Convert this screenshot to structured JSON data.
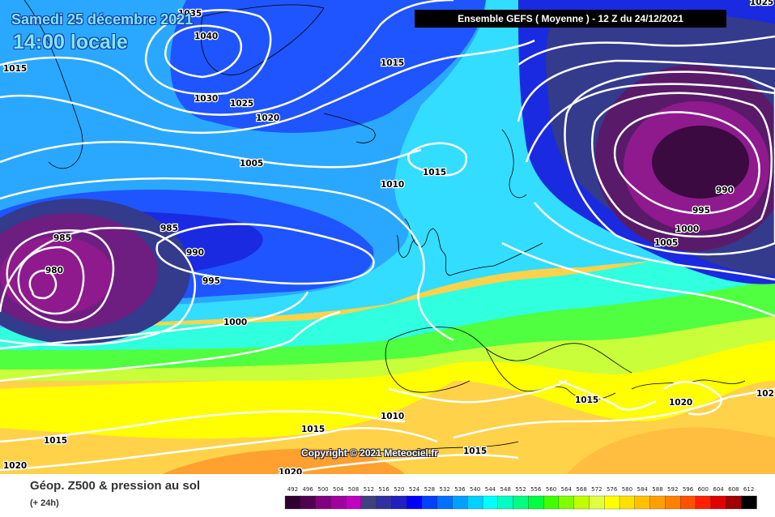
{
  "title": {
    "date": "Samedi 25 décembre 2021",
    "time": "14:00 locale"
  },
  "header": "Ensemble GEFS  ( Moyenne )  -  12 Z du 24/12/2021",
  "copyright": "Copyright © 2021 Meteociel.fr",
  "footer": {
    "title": "Géop. Z500 & pression au sol",
    "subtitle": "(+ 24h)"
  },
  "legend": {
    "values": [
      "492",
      "496",
      "500",
      "504",
      "508",
      "512",
      "516",
      "520",
      "524",
      "528",
      "532",
      "536",
      "540",
      "544",
      "548",
      "552",
      "556",
      "560",
      "564",
      "568",
      "572",
      "576",
      "580",
      "584",
      "588",
      "592",
      "596",
      "600",
      "604",
      "608",
      "612"
    ],
    "colors": [
      "#300030",
      "#500050",
      "#800080",
      "#a000a0",
      "#c000c0",
      "#404080",
      "#3030a0",
      "#2020c0",
      "#0000ff",
      "#0040ff",
      "#0070ff",
      "#00a0ff",
      "#00d0ff",
      "#00ffff",
      "#00ffc0",
      "#00ff80",
      "#00ff40",
      "#40ff00",
      "#80ff00",
      "#c0ff00",
      "#e0ff40",
      "#ffff00",
      "#ffe000",
      "#ffc000",
      "#ffa000",
      "#ff8000",
      "#ff5000",
      "#ff2000",
      "#e00000",
      "#a00000",
      "#000000"
    ]
  },
  "isobars": [
    {
      "label": "1035"
    },
    {
      "label": "1040"
    },
    {
      "label": "1015"
    },
    {
      "label": "1030"
    },
    {
      "label": "1025"
    },
    {
      "label": "1020"
    },
    {
      "label": "1015"
    },
    {
      "label": "1005"
    },
    {
      "label": "1010"
    },
    {
      "label": "1015"
    },
    {
      "label": "985"
    },
    {
      "label": "985"
    },
    {
      "label": "980"
    },
    {
      "label": "990"
    },
    {
      "label": "995"
    },
    {
      "label": "1000"
    },
    {
      "label": "990"
    },
    {
      "label": "995"
    },
    {
      "label": "1000"
    },
    {
      "label": "1005"
    },
    {
      "label": "1015"
    },
    {
      "label": "1020"
    },
    {
      "label": "1010"
    },
    {
      "label": "1015"
    },
    {
      "label": "1015"
    },
    {
      "label": "1015"
    },
    {
      "label": "1020"
    },
    {
      "label": "1020"
    },
    {
      "label": "102"
    },
    {
      "label": "1025"
    }
  ]
}
